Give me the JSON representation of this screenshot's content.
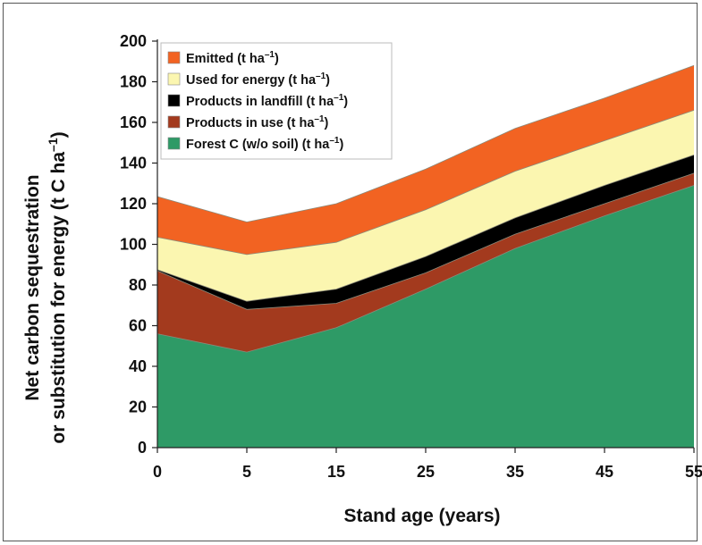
{
  "chart_data": {
    "type": "area",
    "stacked": true,
    "x": [
      0,
      5,
      15,
      25,
      35,
      45,
      55
    ],
    "xlabel": "Stand age (years)",
    "ylabel_line1": "Net carbon sequestration",
    "ylabel_line2": "or substitution for energy (t C ha",
    "ylabel_sup": "–1",
    "ylabel_close": ")",
    "ylim": [
      0,
      200
    ],
    "yticks": [
      0,
      20,
      40,
      60,
      80,
      100,
      120,
      140,
      160,
      180,
      200
    ],
    "xticks": [
      "0",
      "5",
      "15",
      "25",
      "35",
      "45",
      "55"
    ],
    "legend_position": "top-left",
    "grid": false,
    "series": [
      {
        "key": "forest",
        "name": "Forest C (w/o soil) (t ha",
        "sup": "–1",
        "close": ")",
        "color": "#2e9a66",
        "values": [
          56,
          47,
          59,
          78,
          98,
          114,
          129
        ]
      },
      {
        "key": "inuse",
        "name": "Products in use (t ha",
        "sup": "–1",
        "close": ")",
        "color": "#a33a1e",
        "values": [
          31,
          21,
          12,
          8,
          7,
          6,
          6
        ]
      },
      {
        "key": "landfill",
        "name": "Products in landfill (t ha",
        "sup": "–1",
        "close": ")",
        "color": "#000000",
        "values": [
          0.5,
          4,
          7,
          8,
          8,
          9,
          9
        ]
      },
      {
        "key": "energy",
        "name": "Used for energy (t ha",
        "sup": "–1",
        "close": ")",
        "color": "#fbf6b0",
        "values": [
          16,
          23,
          23,
          23,
          23,
          22,
          22
        ]
      },
      {
        "key": "emitted",
        "name": "Emitted (t ha",
        "sup": "–1",
        "close": ")",
        "color": "#f26322",
        "values": [
          20,
          16,
          19,
          20,
          21,
          21,
          22
        ]
      }
    ]
  }
}
